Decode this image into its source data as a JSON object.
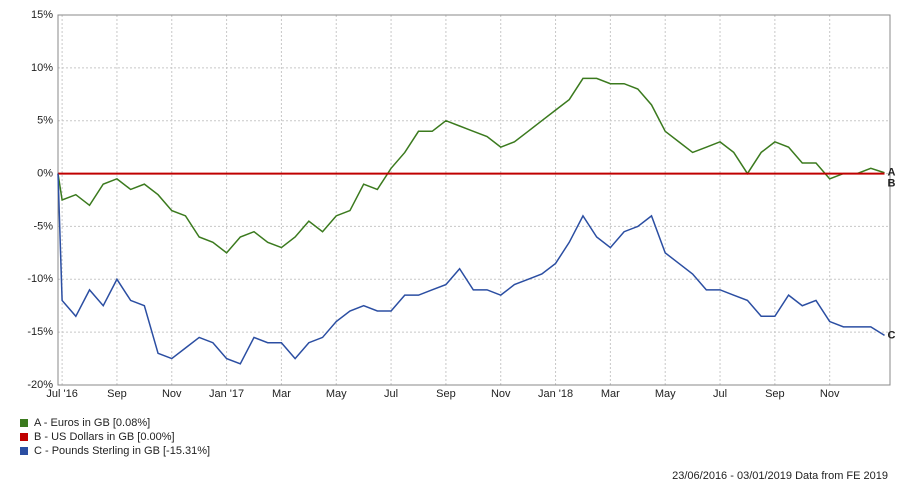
{
  "chart_data": {
    "type": "line",
    "x": [
      -0.15,
      0,
      0.5,
      1,
      1.5,
      2,
      2.5,
      3,
      3.5,
      4,
      4.5,
      5,
      5.5,
      6,
      6.5,
      7,
      7.5,
      8,
      8.5,
      9,
      9.5,
      10,
      10.5,
      11,
      11.5,
      12,
      12.5,
      13,
      13.5,
      14,
      14.5,
      15,
      15.5,
      16,
      16.5,
      17,
      17.5,
      18,
      18.5,
      19,
      19.5,
      20,
      20.5,
      21,
      21.5,
      22,
      22.5,
      23,
      23.5,
      24,
      24.5,
      25,
      25.5,
      26,
      26.5,
      27,
      27.5,
      28,
      28.5,
      29,
      29.5,
      30
    ],
    "series": [
      {
        "name": "A - Euros in GB [0.08%]",
        "tag": "A",
        "color": "#3b7a1e",
        "values": [
          0,
          -2.5,
          -2,
          -3,
          -1,
          -0.5,
          -1.5,
          -1,
          -2,
          -3.5,
          -4,
          -6,
          -6.5,
          -7.5,
          -6,
          -5.5,
          -6.5,
          -7,
          -6,
          -4.5,
          -5.5,
          -4,
          -3.5,
          -1,
          -1.5,
          0.5,
          2,
          4,
          4,
          5,
          4.5,
          4,
          3.5,
          2.5,
          3,
          4,
          5,
          6,
          7,
          9,
          9,
          8.5,
          8.5,
          8,
          6.5,
          4,
          3,
          2,
          2.5,
          3,
          2,
          0,
          2,
          3,
          2.5,
          1,
          1,
          -0.5,
          0,
          0,
          0.5,
          0.08
        ]
      },
      {
        "name": "B - US Dollars in GB [0.00%]",
        "tag": "B",
        "color": "#c00000",
        "values": [
          0,
          0,
          0,
          0,
          0,
          0,
          0,
          0,
          0,
          0,
          0,
          0,
          0,
          0,
          0,
          0,
          0,
          0,
          0,
          0,
          0,
          0,
          0,
          0,
          0,
          0,
          0,
          0,
          0,
          0,
          0,
          0,
          0,
          0,
          0,
          0,
          0,
          0,
          0,
          0,
          0,
          0,
          0,
          0,
          0,
          0,
          0,
          0,
          0,
          0,
          0,
          0,
          0,
          0,
          0,
          0,
          0,
          0,
          0,
          0,
          0,
          0
        ]
      },
      {
        "name": "C - Pounds Sterling in GB [-15.31%]",
        "tag": "C",
        "color": "#2b4ea2",
        "values": [
          0,
          -12,
          -13.5,
          -11,
          -12.5,
          -10,
          -12,
          -12.5,
          -17,
          -17.5,
          -16.5,
          -15.5,
          -16,
          -17.5,
          -18,
          -15.5,
          -16,
          -16,
          -17.5,
          -16,
          -15.5,
          -14,
          -13,
          -12.5,
          -13,
          -13,
          -11.5,
          -11.5,
          -11,
          -10.5,
          -9,
          -11,
          -11,
          -11.5,
          -10.5,
          -10,
          -9.5,
          -8.5,
          -6.5,
          -4,
          -6,
          -7,
          -5.5,
          -5,
          -4,
          -7.5,
          -8.5,
          -9.5,
          -11,
          -11,
          -11.5,
          -12,
          -13.5,
          -13.5,
          -11.5,
          -12.5,
          -12,
          -14,
          -14.5,
          -14.5,
          -14.5,
          -15.31
        ]
      }
    ],
    "xlim": [
      -0.15,
      30.2
    ],
    "xticks": [
      {
        "value": 0,
        "label": "Jul '16"
      },
      {
        "value": 2,
        "label": "Sep"
      },
      {
        "value": 4,
        "label": "Nov"
      },
      {
        "value": 6,
        "label": "Jan '17"
      },
      {
        "value": 8,
        "label": "Mar"
      },
      {
        "value": 10,
        "label": "May"
      },
      {
        "value": 12,
        "label": "Jul"
      },
      {
        "value": 14,
        "label": "Sep"
      },
      {
        "value": 16,
        "label": "Nov"
      },
      {
        "value": 18,
        "label": "Jan '18"
      },
      {
        "value": 20,
        "label": "Mar"
      },
      {
        "value": 22,
        "label": "May"
      },
      {
        "value": 24,
        "label": "Jul"
      },
      {
        "value": 26,
        "label": "Sep"
      },
      {
        "value": 28,
        "label": "Nov"
      }
    ],
    "ylim": [
      -20,
      15
    ],
    "yticks": [
      {
        "value": -20,
        "label": "-20%"
      },
      {
        "value": -15,
        "label": "-15%"
      },
      {
        "value": -10,
        "label": "-10%"
      },
      {
        "value": -5,
        "label": "-5%"
      },
      {
        "value": 0,
        "label": "0%"
      },
      {
        "value": 5,
        "label": "5%"
      },
      {
        "value": 10,
        "label": "10%"
      },
      {
        "value": 15,
        "label": "15%"
      }
    ],
    "grid": true,
    "footer": "23/06/2016 - 03/01/2019 Data from FE 2019"
  }
}
